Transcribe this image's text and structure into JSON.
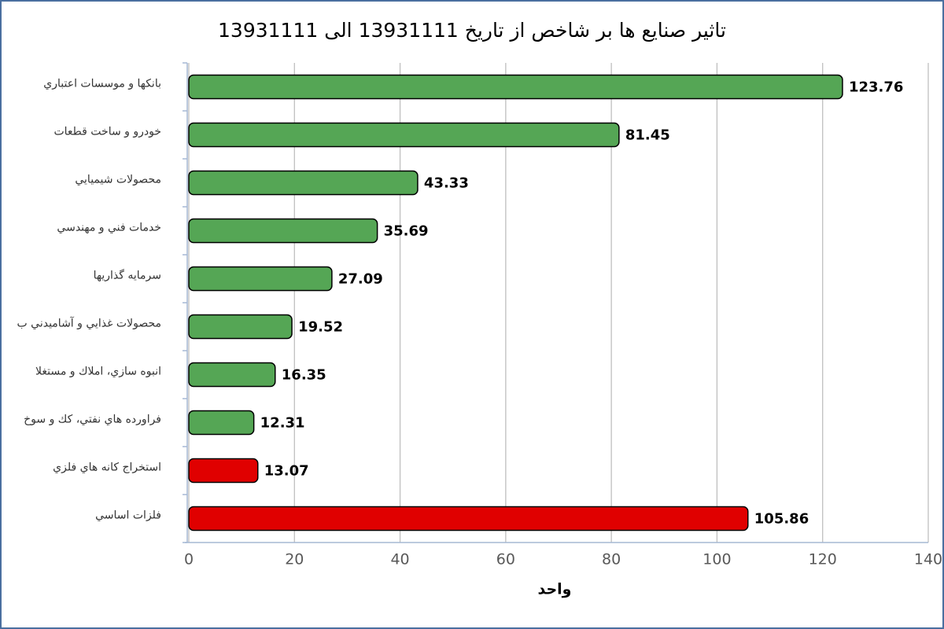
{
  "chart_data": {
    "type": "bar",
    "orientation": "horizontal",
    "title": "تاثير صنايع ها بر شاخص از تاريخ 13931111 الی 13931111",
    "x_label": "واحد",
    "categories": [
      "بانكها و موسسات اعتباري",
      "خودرو و ساخت قطعات",
      "محصولات شيميايي",
      "خدمات فني و مهندسي",
      "سرمايه گذاريها",
      "محصولات غذايي و آشاميدني ب",
      "انبوه سازي، املاك و مستغلا",
      "فراورده هاي نفتي، كك و سوخ",
      "استخراج كانه هاي فلزي",
      "فلزات اساسي"
    ],
    "values": [
      123.76,
      81.45,
      43.33,
      35.69,
      27.09,
      19.52,
      16.35,
      12.31,
      13.07,
      105.86
    ],
    "colors": [
      "#55a655",
      "#55a655",
      "#55a655",
      "#55a655",
      "#55a655",
      "#55a655",
      "#55a655",
      "#55a655",
      "#e00000",
      "#e00000"
    ],
    "xlim": [
      0,
      140
    ],
    "xticks": [
      0,
      20,
      40,
      60,
      80,
      100,
      120,
      140
    ],
    "grid": true
  }
}
